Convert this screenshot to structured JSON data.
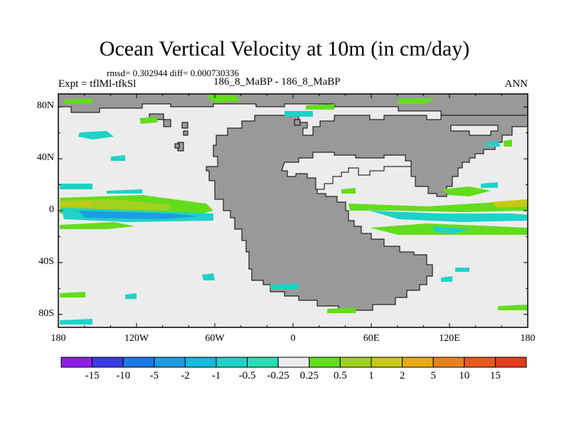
{
  "title": "Ocean Vertical Velocity at 10m (in cm/day)",
  "stats": "rmsd= 0.302944  diff= 0.000730336",
  "experiment": "Expt = tflMl-tfkSl",
  "case_label": "186_8_MaBP - 186_8_MaBP",
  "season": "ANN",
  "axes": {
    "y_ticks": [
      {
        "value": 80,
        "label": "80N"
      },
      {
        "value": 40,
        "label": "40N"
      },
      {
        "value": 0,
        "label": "0"
      },
      {
        "value": -40,
        "label": "40S"
      },
      {
        "value": -80,
        "label": "80S"
      }
    ],
    "x_ticks": [
      {
        "value": -180,
        "label": "180"
      },
      {
        "value": -120,
        "label": "120W"
      },
      {
        "value": -60,
        "label": "60W"
      },
      {
        "value": 0,
        "label": "0"
      },
      {
        "value": 60,
        "label": "60E"
      },
      {
        "value": 120,
        "label": "120E"
      },
      {
        "value": 180,
        "label": "180"
      }
    ],
    "lon_range": [
      -180,
      180
    ],
    "lat_range": [
      -90,
      90
    ]
  },
  "colorbar": {
    "labels": [
      "-15",
      "-10",
      "-5",
      "-2",
      "-1",
      "-0.5",
      "-0.25",
      "0.25",
      "0.5",
      "1",
      "2",
      "5",
      "10",
      "15"
    ],
    "colors": [
      "#8c1ee6",
      "#3c3ce6",
      "#1e78e6",
      "#1e9be1",
      "#14b9dc",
      "#1ed2c8",
      "#28dcb4",
      "#ececec",
      "#64dc1e",
      "#a0d21e",
      "#c8c814",
      "#e6aa14",
      "#e6821e",
      "#e65a1e",
      "#e63c1e"
    ]
  },
  "colors": {
    "land": "#999999",
    "ocean_background": "#ececec"
  }
}
